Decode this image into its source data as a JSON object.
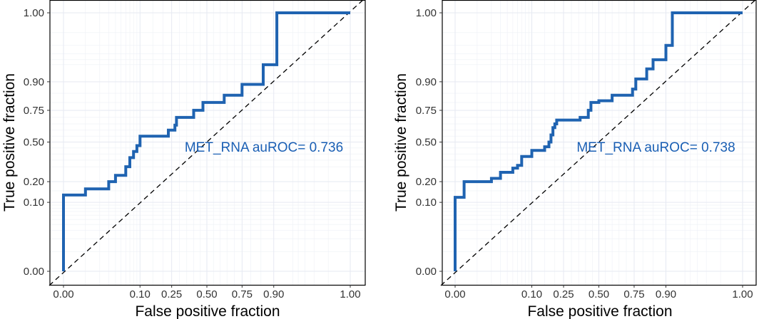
{
  "chart_data": [
    {
      "type": "line",
      "xlabel": "False positive fraction",
      "ylabel": "True positive fraction",
      "x_ticks": [
        "0.00",
        "0.10",
        "0.25",
        "0.50",
        "0.75",
        "0.90",
        "1.00"
      ],
      "y_ticks": [
        "0.00",
        "0.10",
        "0.20",
        "0.50",
        "0.75",
        "0.90",
        "1.00"
      ],
      "xlim": [
        0,
        1
      ],
      "ylim": [
        0,
        1
      ],
      "scale": "probit (normal quantile) axes",
      "grid": true,
      "annotation": "MET_RNA auROC= 0.736",
      "series": [
        {
          "color": "#1f63b1",
          "points": [
            [
              0,
              0
            ],
            [
              0,
              0.13
            ],
            [
              0.01,
              0.13
            ],
            [
              0.01,
              0.16
            ],
            [
              0.03,
              0.16
            ],
            [
              0.03,
              0.2
            ],
            [
              0.04,
              0.2
            ],
            [
              0.04,
              0.24
            ],
            [
              0.06,
              0.24
            ],
            [
              0.06,
              0.3
            ],
            [
              0.07,
              0.3
            ],
            [
              0.07,
              0.37
            ],
            [
              0.08,
              0.37
            ],
            [
              0.08,
              0.42
            ],
            [
              0.09,
              0.42
            ],
            [
              0.09,
              0.47
            ],
            [
              0.1,
              0.47
            ],
            [
              0.1,
              0.55
            ],
            [
              0.23,
              0.55
            ],
            [
              0.23,
              0.6
            ],
            [
              0.27,
              0.6
            ],
            [
              0.27,
              0.64
            ],
            [
              0.28,
              0.64
            ],
            [
              0.28,
              0.7
            ],
            [
              0.4,
              0.7
            ],
            [
              0.4,
              0.75
            ],
            [
              0.47,
              0.75
            ],
            [
              0.47,
              0.8
            ],
            [
              0.63,
              0.8
            ],
            [
              0.63,
              0.84
            ],
            [
              0.75,
              0.84
            ],
            [
              0.75,
              0.89
            ],
            [
              0.86,
              0.89
            ],
            [
              0.86,
              0.95
            ],
            [
              0.91,
              0.95
            ],
            [
              0.91,
              1
            ],
            [
              1,
              1
            ]
          ]
        },
        {
          "type": "reference-diagonal",
          "points": [
            [
              0,
              0
            ],
            [
              1,
              1
            ]
          ]
        }
      ]
    },
    {
      "type": "line",
      "xlabel": "False positive fraction",
      "ylabel": "True positive fraction",
      "x_ticks": [
        "0.00",
        "0.10",
        "0.25",
        "0.50",
        "0.75",
        "0.90",
        "1.00"
      ],
      "y_ticks": [
        "0.00",
        "0.10",
        "0.20",
        "0.50",
        "0.75",
        "0.90",
        "1.00"
      ],
      "xlim": [
        0,
        1
      ],
      "ylim": [
        0,
        1
      ],
      "scale": "probit (normal quantile) axes",
      "grid": true,
      "annotation": "MET_RNA auROC= 0.738",
      "series": [
        {
          "color": "#1f63b1",
          "points": [
            [
              0,
              0
            ],
            [
              0,
              0.12
            ],
            [
              0.005,
              0.12
            ],
            [
              0.005,
              0.2
            ],
            [
              0.02,
              0.2
            ],
            [
              0.02,
              0.22
            ],
            [
              0.03,
              0.22
            ],
            [
              0.03,
              0.26
            ],
            [
              0.05,
              0.26
            ],
            [
              0.05,
              0.29
            ],
            [
              0.06,
              0.29
            ],
            [
              0.06,
              0.31
            ],
            [
              0.07,
              0.31
            ],
            [
              0.07,
              0.38
            ],
            [
              0.1,
              0.38
            ],
            [
              0.1,
              0.43
            ],
            [
              0.15,
              0.43
            ],
            [
              0.15,
              0.46
            ],
            [
              0.17,
              0.46
            ],
            [
              0.17,
              0.5
            ],
            [
              0.18,
              0.5
            ],
            [
              0.18,
              0.56
            ],
            [
              0.19,
              0.56
            ],
            [
              0.19,
              0.62
            ],
            [
              0.2,
              0.62
            ],
            [
              0.2,
              0.65
            ],
            [
              0.21,
              0.65
            ],
            [
              0.21,
              0.68
            ],
            [
              0.36,
              0.68
            ],
            [
              0.36,
              0.7
            ],
            [
              0.42,
              0.7
            ],
            [
              0.42,
              0.75
            ],
            [
              0.44,
              0.75
            ],
            [
              0.44,
              0.8
            ],
            [
              0.5,
              0.8
            ],
            [
              0.5,
              0.81
            ],
            [
              0.6,
              0.81
            ],
            [
              0.6,
              0.84
            ],
            [
              0.74,
              0.84
            ],
            [
              0.74,
              0.87
            ],
            [
              0.76,
              0.87
            ],
            [
              0.76,
              0.91
            ],
            [
              0.82,
              0.91
            ],
            [
              0.82,
              0.94
            ],
            [
              0.85,
              0.94
            ],
            [
              0.85,
              0.96
            ],
            [
              0.9,
              0.96
            ],
            [
              0.9,
              0.98
            ],
            [
              0.92,
              0.98
            ],
            [
              0.92,
              1
            ],
            [
              1,
              1
            ]
          ]
        },
        {
          "type": "reference-diagonal",
          "points": [
            [
              0,
              0
            ],
            [
              1,
              1
            ]
          ]
        }
      ]
    }
  ]
}
